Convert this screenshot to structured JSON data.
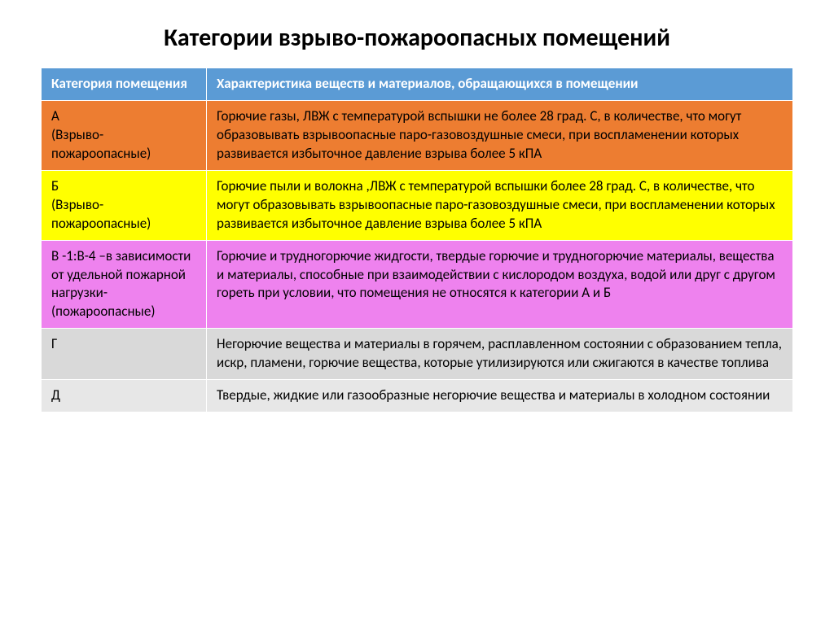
{
  "title": "Категории взрыво-пожароопасных помещений",
  "table": {
    "header_bg": "#5b9bd5",
    "header_text_color": "#ffffff",
    "columns": [
      {
        "label": "Категория помещения"
      },
      {
        "label": "Характеристика  веществ и материалов, обращающихся в помещении"
      }
    ],
    "rows": [
      {
        "bg": "#ed7d31",
        "text_color": "#000000",
        "category": "А\n(Взрыво-пожароопасные)",
        "description": "Горючие газы, ЛВЖ с температурой вспышки не более 28 град. С, в количестве, что могут образовывать взрывоопасные паро-газовоздушные смеси, при воспламенении которых развивается избыточное давление взрыва более 5 кПА"
      },
      {
        "bg": "#ffff00",
        "text_color": "#000000",
        "category": "Б\n(Взрыво-пожароопасные)",
        "description": "Горючие пыли и волокна ,ЛВЖ с температурой вспышки более 28 град. С, в количестве, что могут образовывать взрывоопасные паро-газовоздушные смеси, при воспламенении которых развивается избыточное давление взрыва более 5 кПА"
      },
      {
        "bg": "#ee82ee",
        "text_color": "#000000",
        "category": "В -1:В-4 –в зависимости от удельной пожарной нагрузки-(пожароопасные)",
        "description": "Горючие и трудногорючие жидгости, твердые горючие и трудногорючие материалы, вещества и материалы, способные при взаимодействии с кислородом воздуха, водой или друг с другом гореть при условии, что помещения не относятся к категории А и Б"
      },
      {
        "bg": "#d9d9d9",
        "text_color": "#000000",
        "category": "Г",
        "description": "Негорючие вещества и материалы  в горячем, расплавленном состоянии с образованием тепла, искр, пламени, горючие вещества, которые утилизируются или сжигаются в качестве топлива"
      },
      {
        "bg": "#e7e7e7",
        "text_color": "#000000",
        "category": "Д",
        "description": "Твердые, жидкие или газообразные негорючие вещества и материалы в холодном состоянии"
      }
    ]
  }
}
